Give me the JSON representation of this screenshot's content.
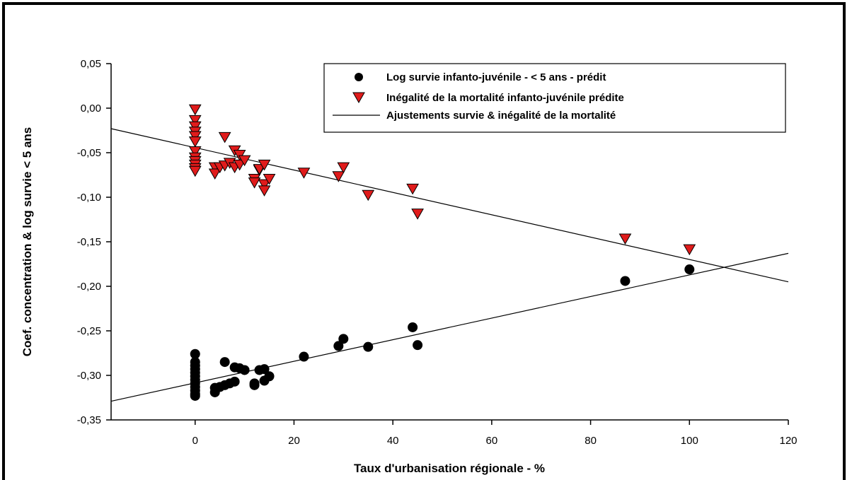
{
  "chart_data": {
    "type": "scatter",
    "xlabel": "Taux d'urbanisation régionale - %",
    "ylabel": "Coef. concentration & log survie < 5 ans",
    "xlim": [
      -17,
      120
    ],
    "ylim": [
      -0.35,
      0.05
    ],
    "xticks": [
      0,
      20,
      40,
      60,
      80,
      100,
      120
    ],
    "xtick_labels": [
      "0",
      "20",
      "40",
      "60",
      "80",
      "100",
      "120"
    ],
    "yticks": [
      0.05,
      0.0,
      -0.05,
      -0.1,
      -0.15,
      -0.2,
      -0.25,
      -0.3,
      -0.35
    ],
    "ytick_labels": [
      "0,05",
      "0,00",
      "-0,05",
      "-0,10",
      "-0,15",
      "-0,20",
      "-0,25",
      "-0,30",
      "-0,35"
    ],
    "grid": false,
    "legend_position": "top-right",
    "series": [
      {
        "name": "Log survie infanto-juvénile - < 5 ans - prédit",
        "marker": "circle",
        "color": "#000000",
        "points": [
          [
            0,
            -0.276
          ],
          [
            0,
            -0.285
          ],
          [
            0,
            -0.289
          ],
          [
            0,
            -0.293
          ],
          [
            0,
            -0.297
          ],
          [
            0,
            -0.301
          ],
          [
            0,
            -0.305
          ],
          [
            0,
            -0.309
          ],
          [
            0,
            -0.313
          ],
          [
            0,
            -0.317
          ],
          [
            0,
            -0.321
          ],
          [
            0,
            -0.323
          ],
          [
            4,
            -0.319
          ],
          [
            4,
            -0.314
          ],
          [
            5,
            -0.313
          ],
          [
            6,
            -0.285
          ],
          [
            6,
            -0.311
          ],
          [
            7,
            -0.309
          ],
          [
            8,
            -0.307
          ],
          [
            8,
            -0.291
          ],
          [
            9,
            -0.292
          ],
          [
            10,
            -0.294
          ],
          [
            12,
            -0.309
          ],
          [
            12,
            -0.311
          ],
          [
            13,
            -0.294
          ],
          [
            14,
            -0.293
          ],
          [
            14,
            -0.306
          ],
          [
            15,
            -0.301
          ],
          [
            22,
            -0.279
          ],
          [
            29,
            -0.267
          ],
          [
            30,
            -0.259
          ],
          [
            35,
            -0.268
          ],
          [
            44,
            -0.246
          ],
          [
            45,
            -0.266
          ],
          [
            87,
            -0.194
          ],
          [
            100,
            -0.181
          ]
        ]
      },
      {
        "name": "Inégalité de la mortalité infanto-juvénile prédite",
        "marker": "triangle-down",
        "color": "#e01b1b",
        "points": [
          [
            0,
            -0.001
          ],
          [
            0,
            -0.013
          ],
          [
            0,
            -0.02
          ],
          [
            0,
            -0.026
          ],
          [
            0,
            -0.031
          ],
          [
            0,
            -0.037
          ],
          [
            0,
            -0.048
          ],
          [
            0,
            -0.055
          ],
          [
            0,
            -0.059
          ],
          [
            0,
            -0.063
          ],
          [
            0,
            -0.067
          ],
          [
            0,
            -0.07
          ],
          [
            4,
            -0.066
          ],
          [
            4,
            -0.073
          ],
          [
            5,
            -0.066
          ],
          [
            6,
            -0.032
          ],
          [
            6,
            -0.064
          ],
          [
            7,
            -0.061
          ],
          [
            8,
            -0.047
          ],
          [
            8,
            -0.066
          ],
          [
            9,
            -0.052
          ],
          [
            9,
            -0.063
          ],
          [
            10,
            -0.058
          ],
          [
            12,
            -0.079
          ],
          [
            12,
            -0.083
          ],
          [
            13,
            -0.069
          ],
          [
            13,
            -0.068
          ],
          [
            14,
            -0.063
          ],
          [
            14,
            -0.085
          ],
          [
            14,
            -0.092
          ],
          [
            15,
            -0.079
          ],
          [
            22,
            -0.072
          ],
          [
            29,
            -0.076
          ],
          [
            30,
            -0.066
          ],
          [
            35,
            -0.097
          ],
          [
            44,
            -0.09
          ],
          [
            45,
            -0.118
          ],
          [
            87,
            -0.146
          ],
          [
            100,
            -0.158
          ]
        ]
      },
      {
        "name": "Ajustements survie & inégalité de la mortalité",
        "marker": "line",
        "color": "#000000",
        "lines": [
          [
            [
              -17,
              -0.329
            ],
            [
              120,
              -0.163
            ]
          ],
          [
            [
              -17,
              -0.023
            ],
            [
              120,
              -0.195
            ]
          ]
        ]
      }
    ]
  }
}
